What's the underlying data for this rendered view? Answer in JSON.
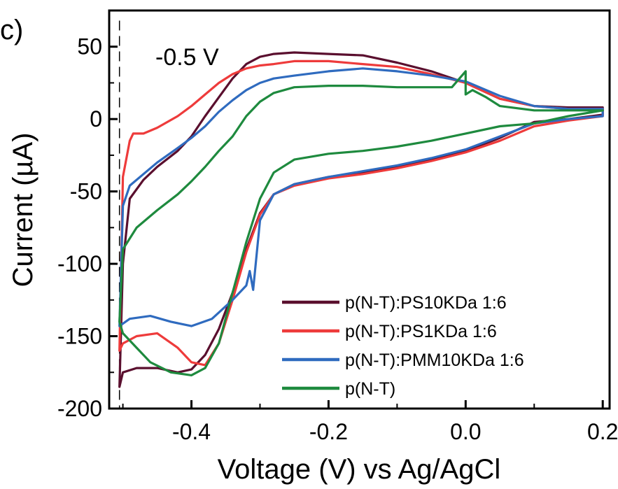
{
  "panel_label": "c)",
  "chart_data": {
    "type": "line",
    "xlabel": "Voltage (V) vs Ag/AgCl",
    "ylabel": "Current (µA)",
    "xlim": [
      -0.52,
      0.21
    ],
    "ylim": [
      -200,
      75
    ],
    "xticks": [
      -0.4,
      -0.2,
      0.0,
      0.2
    ],
    "xtick_labels": [
      "-0.4",
      "-0.2",
      "0.0",
      "0.2"
    ],
    "yticks": [
      50,
      0,
      -50,
      -100,
      -150,
      -200
    ],
    "ytick_labels": [
      "50",
      "0",
      "-50",
      "-100",
      "-150",
      "-200"
    ],
    "grid": false,
    "legend_position": "bottom-right",
    "annotation": {
      "text": "-0.5 V",
      "x": -0.505
    },
    "series": [
      {
        "name": "p(N-T):PS10KDa 1:6",
        "color": "#5a0f2e",
        "x": [
          -0.505,
          -0.5,
          -0.49,
          -0.47,
          -0.45,
          -0.42,
          -0.4,
          -0.38,
          -0.36,
          -0.34,
          -0.32,
          -0.3,
          -0.28,
          -0.25,
          -0.2,
          -0.15,
          -0.1,
          -0.05,
          0.0,
          0.05,
          0.1,
          0.15,
          0.2,
          0.2,
          0.15,
          0.1,
          0.05,
          0.0,
          -0.05,
          -0.1,
          -0.15,
          -0.2,
          -0.25,
          -0.28,
          -0.3,
          -0.32,
          -0.34,
          -0.36,
          -0.38,
          -0.4,
          -0.42,
          -0.45,
          -0.48,
          -0.5,
          -0.505
        ],
        "y": [
          -185,
          -100,
          -55,
          -42,
          -33,
          -22,
          -12,
          2,
          15,
          28,
          38,
          43,
          45,
          46,
          45,
          44,
          39,
          33,
          25,
          14,
          9,
          8,
          8,
          3,
          0,
          -2,
          -13,
          -22,
          -28,
          -33,
          -37,
          -40,
          -45,
          -52,
          -65,
          -90,
          -120,
          -145,
          -163,
          -173,
          -175,
          -172,
          -172,
          -175,
          -185
        ]
      },
      {
        "name": "p(N-T):PS1KDa 1:6",
        "color": "#ee3b3b",
        "x": [
          -0.505,
          -0.5,
          -0.49,
          -0.485,
          -0.47,
          -0.45,
          -0.42,
          -0.4,
          -0.38,
          -0.36,
          -0.34,
          -0.32,
          -0.3,
          -0.28,
          -0.25,
          -0.2,
          -0.15,
          -0.1,
          -0.05,
          0.0,
          0.05,
          0.1,
          0.15,
          0.2,
          0.2,
          0.15,
          0.1,
          0.05,
          0.0,
          -0.05,
          -0.1,
          -0.15,
          -0.2,
          -0.25,
          -0.28,
          -0.3,
          -0.32,
          -0.34,
          -0.36,
          -0.38,
          -0.4,
          -0.42,
          -0.45,
          -0.48,
          -0.5,
          -0.505
        ],
        "y": [
          -160,
          -40,
          -15,
          -10,
          -10,
          -6,
          2,
          9,
          17,
          25,
          31,
          35,
          37,
          38,
          40,
          40,
          38,
          36,
          31,
          25,
          14,
          9,
          7,
          7,
          2,
          -1,
          -5,
          -15,
          -23,
          -29,
          -34,
          -38,
          -41,
          -46,
          -52,
          -66,
          -92,
          -125,
          -155,
          -170,
          -168,
          -158,
          -148,
          -150,
          -155,
          -160
        ]
      },
      {
        "name": "p(N-T):PMM10KDa 1:6",
        "color": "#2f6bbf",
        "x": [
          -0.505,
          -0.5,
          -0.49,
          -0.47,
          -0.45,
          -0.42,
          -0.4,
          -0.38,
          -0.36,
          -0.34,
          -0.32,
          -0.3,
          -0.28,
          -0.25,
          -0.2,
          -0.15,
          -0.1,
          -0.05,
          0.0,
          0.05,
          0.1,
          0.15,
          0.2,
          0.2,
          0.15,
          0.1,
          0.05,
          0.0,
          -0.05,
          -0.1,
          -0.15,
          -0.2,
          -0.25,
          -0.28,
          -0.3,
          -0.31,
          -0.315,
          -0.32,
          -0.34,
          -0.37,
          -0.4,
          -0.43,
          -0.46,
          -0.49,
          -0.505
        ],
        "y": [
          -143,
          -60,
          -46,
          -38,
          -30,
          -20,
          -13,
          -5,
          5,
          13,
          20,
          25,
          28,
          30,
          33,
          35,
          33,
          30,
          26,
          16,
          9,
          7,
          7,
          2,
          0,
          -3,
          -12,
          -21,
          -27,
          -32,
          -36,
          -40,
          -45,
          -52,
          -70,
          -118,
          -105,
          -115,
          -125,
          -138,
          -143,
          -140,
          -136,
          -138,
          -143
        ]
      },
      {
        "name": "p(N-T)",
        "color": "#1e8a3e",
        "x": [
          -0.505,
          -0.5,
          -0.48,
          -0.45,
          -0.42,
          -0.4,
          -0.38,
          -0.36,
          -0.34,
          -0.32,
          -0.3,
          -0.28,
          -0.25,
          -0.2,
          -0.15,
          -0.1,
          -0.05,
          -0.02,
          0.0,
          0.0,
          0.01,
          0.03,
          0.05,
          0.1,
          0.15,
          0.2,
          0.2,
          0.15,
          0.1,
          0.05,
          0.0,
          -0.05,
          -0.1,
          -0.15,
          -0.2,
          -0.25,
          -0.28,
          -0.3,
          -0.32,
          -0.34,
          -0.36,
          -0.38,
          -0.4,
          -0.43,
          -0.46,
          -0.48,
          -0.5,
          -0.505
        ],
        "y": [
          -140,
          -90,
          -75,
          -63,
          -52,
          -43,
          -33,
          -22,
          -12,
          2,
          12,
          18,
          22,
          23,
          23,
          22,
          22,
          22,
          33,
          17,
          20,
          15,
          9,
          6,
          6,
          6,
          6,
          2,
          -3,
          -5,
          -10,
          -15,
          -19,
          -22,
          -24,
          -28,
          -37,
          -55,
          -85,
          -120,
          -155,
          -172,
          -177,
          -175,
          -168,
          -158,
          -148,
          -140
        ]
      }
    ]
  }
}
